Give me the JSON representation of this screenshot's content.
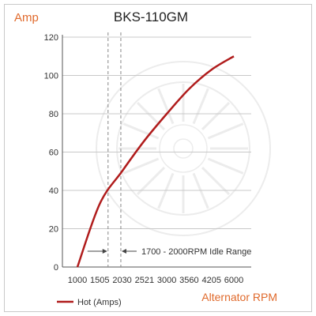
{
  "colors": {
    "accent": "#e06a2c",
    "series": "#b01c1c",
    "grid": "#c8c8c8",
    "refline": "#888888",
    "watermark": "#ececec"
  },
  "icons": {
    "watermark": "alternator-watermark-icon"
  },
  "chart_data": {
    "type": "line",
    "title": "BKS-110GM",
    "xlabel": "Alternator RPM",
    "ylabel": "Amp",
    "x_ticks": [
      "1000",
      "1505",
      "2030",
      "2521",
      "3000",
      "3560",
      "4205",
      "6000"
    ],
    "y_ticks": [
      0,
      20,
      40,
      60,
      80,
      100,
      120
    ],
    "ylim": [
      0,
      120
    ],
    "grid": "horizontal",
    "legend_position": "bottom-left",
    "series": [
      {
        "name": "Hot (Amps)",
        "x": [
          "1000",
          "1505",
          "2030",
          "2521",
          "3000",
          "3560",
          "4205",
          "6000"
        ],
        "y": [
          0,
          33,
          50,
          66,
          80,
          93,
          103,
          110
        ]
      }
    ],
    "idle_range": {
      "label": "1700 - 2000RPM Idle Range",
      "from_rpm": 1700,
      "to_rpm": 2000
    }
  }
}
